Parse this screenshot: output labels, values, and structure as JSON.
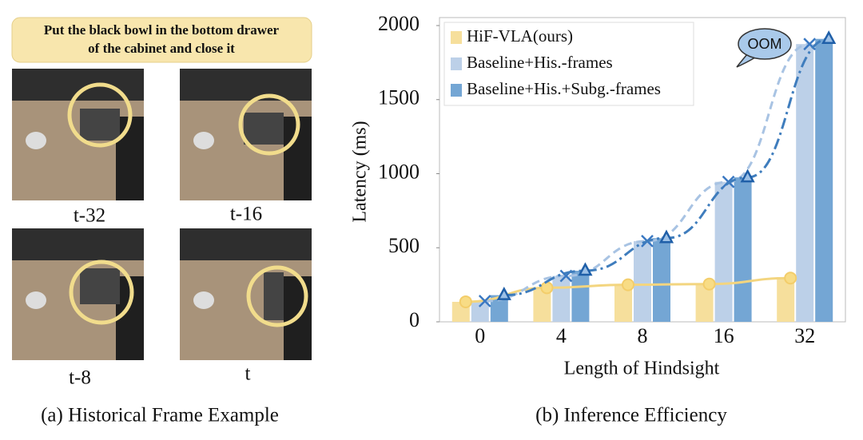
{
  "panel_a": {
    "instruction": [
      "Put the black bowl in the bottom drawer",
      "of the cabinet and close it"
    ],
    "frames": [
      "t-32",
      "t-16",
      "t-8",
      "t"
    ],
    "caption": "(a) Historical Frame Example"
  },
  "chart_data": {
    "type": "bar",
    "caption": "(b) Inference Efficiency",
    "xlabel": "Length of Hindsight",
    "ylabel": "Latency (ms)",
    "categories": [
      "0",
      "4",
      "8",
      "16",
      "32"
    ],
    "series": [
      {
        "name": "HiF-VLA(ours)",
        "color": "#f6df9c",
        "line_color": "#f3d57f",
        "values": [
          135,
          230,
          250,
          255,
          295
        ]
      },
      {
        "name": "Baseline+His.-frames",
        "color": "#bcd0e8",
        "line_color": "#a8c3e3",
        "values": [
          140,
          310,
          545,
          945,
          1875
        ]
      },
      {
        "name": "Baseline+His.+Subg.-frames",
        "color": "#74a6d4",
        "line_color": "#3f7dbd",
        "values": [
          180,
          345,
          565,
          975,
          1910
        ]
      }
    ],
    "ylim": [
      0,
      2000
    ],
    "yticks": [
      0,
      500,
      1000,
      1500,
      2000
    ],
    "grid": false,
    "legend": "top-left",
    "annotation": "OOM"
  }
}
